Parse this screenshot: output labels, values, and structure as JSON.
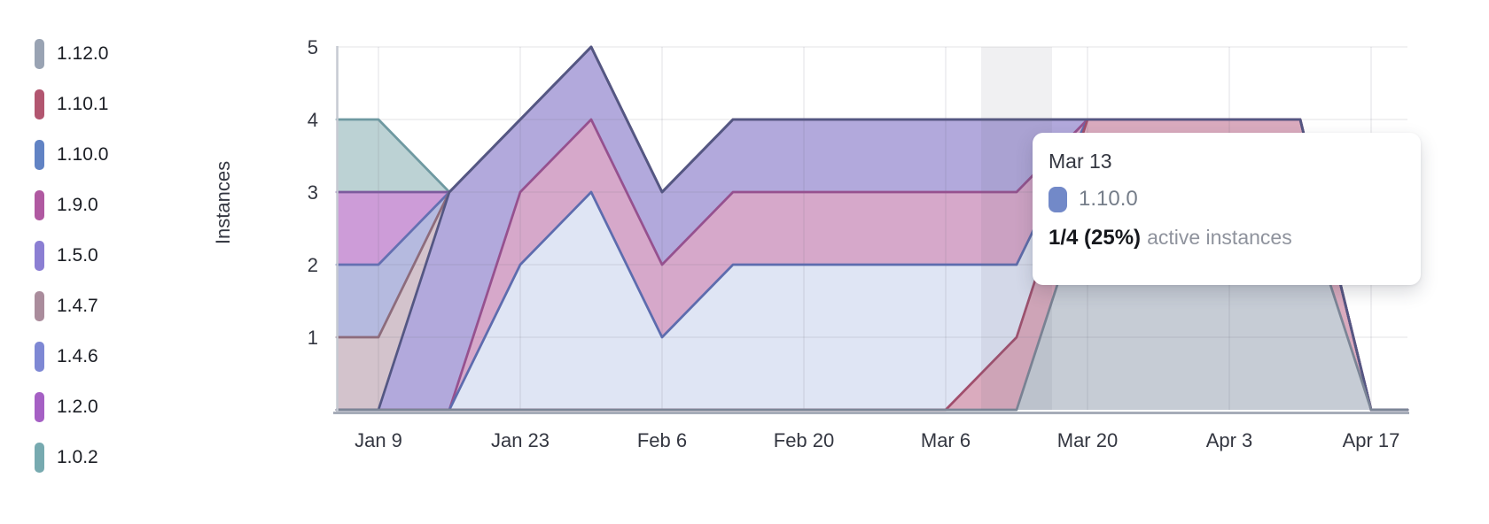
{
  "chart_data": {
    "type": "area",
    "stacked": true,
    "title": "",
    "xlabel": "",
    "ylabel": "Instances",
    "ylim": [
      0,
      5
    ],
    "y_ticks": [
      1,
      2,
      3,
      4,
      5
    ],
    "grid": true,
    "legend_position": "left",
    "x": [
      "Jan 9",
      "Jan 16",
      "Jan 23",
      "Jan 30",
      "Feb 6",
      "Feb 13",
      "Feb 20",
      "Feb 27",
      "Mar 6",
      "Mar 13",
      "Mar 20",
      "Mar 27",
      "Apr 3",
      "Apr 10",
      "Apr 17"
    ],
    "x_tick_labels": [
      "Jan 9",
      "Jan 23",
      "Feb 6",
      "Feb 20",
      "Mar 6",
      "Mar 20",
      "Apr 3",
      "Apr 17"
    ],
    "legend_order": [
      "1.12.0",
      "1.10.1",
      "1.10.0",
      "1.9.0",
      "1.5.0",
      "1.4.7",
      "1.4.6",
      "1.2.0",
      "1.0.2"
    ],
    "series": [
      {
        "name": "1.12.0",
        "color": "#99a3b3",
        "fill": "#c6ccd5",
        "stroke": "#7b8596",
        "values": [
          0,
          0,
          0,
          0,
          0,
          0,
          0,
          0,
          0,
          0,
          3,
          3,
          3,
          3,
          0
        ]
      },
      {
        "name": "1.10.1",
        "color": "#b25670",
        "fill": "#daabbe",
        "stroke": "#a14e6c",
        "values": [
          0,
          0,
          0,
          0,
          0,
          0,
          0,
          0,
          0,
          1,
          1,
          1,
          1,
          1,
          0
        ]
      },
      {
        "name": "1.10.0",
        "color": "#6183c4",
        "fill": "#dfe5f4",
        "stroke": "#5d6cae",
        "values": [
          0,
          0,
          2,
          3,
          1,
          2,
          2,
          2,
          2,
          1,
          0,
          0,
          0,
          0,
          0
        ]
      },
      {
        "name": "1.9.0",
        "color": "#b059a1",
        "fill": "#d6a8ca",
        "stroke": "#96518f",
        "values": [
          0,
          0,
          1,
          1,
          1,
          1,
          1,
          1,
          1,
          1,
          0,
          0,
          0,
          0,
          0
        ]
      },
      {
        "name": "1.5.0",
        "color": "#8b7fd3",
        "fill": "#b2a9dc",
        "stroke": "#545783",
        "values": [
          0,
          3,
          1,
          1,
          1,
          1,
          1,
          1,
          1,
          1,
          0,
          0,
          0,
          0,
          0
        ]
      },
      {
        "name": "1.4.7",
        "color": "#aa8c9c",
        "fill": "#d3c3cc",
        "stroke": "#8d6c7c",
        "values": [
          1,
          0,
          0,
          0,
          0,
          0,
          0,
          0,
          0,
          0,
          0,
          0,
          0,
          0,
          0
        ]
      },
      {
        "name": "1.4.6",
        "color": "#7e88d4",
        "fill": "#b5badf",
        "stroke": "#6570b2",
        "values": [
          1,
          0,
          0,
          0,
          0,
          0,
          0,
          0,
          0,
          0,
          0,
          0,
          0,
          0,
          0
        ]
      },
      {
        "name": "1.2.0",
        "color": "#a560c4",
        "fill": "#cd9cd8",
        "stroke": "#7d5a9e",
        "values": [
          1,
          0,
          0,
          0,
          0,
          0,
          0,
          0,
          0,
          0,
          0,
          0,
          0,
          0,
          0
        ]
      },
      {
        "name": "1.0.2",
        "color": "#77aab0",
        "fill": "#bcd2d4",
        "stroke": "#6f99a1",
        "values": [
          1,
          0,
          0,
          0,
          0,
          0,
          0,
          0,
          0,
          0,
          0,
          0,
          0,
          0,
          0
        ]
      }
    ],
    "stroke_draw_order": [
      "1.0.2",
      "1.2.0",
      "1.4.6",
      "1.4.7",
      "1.9.0",
      "1.10.0",
      "1.10.1",
      "1.5.0",
      "1.12.0"
    ],
    "hover_index": 9
  },
  "hover": {
    "date": "Mar 13"
  },
  "tooltip": {
    "date": "Mar 13",
    "series": "1.10.0",
    "swatch_color": "#7289c8",
    "value": "1/4 (25%)",
    "suffix": "active instances"
  }
}
